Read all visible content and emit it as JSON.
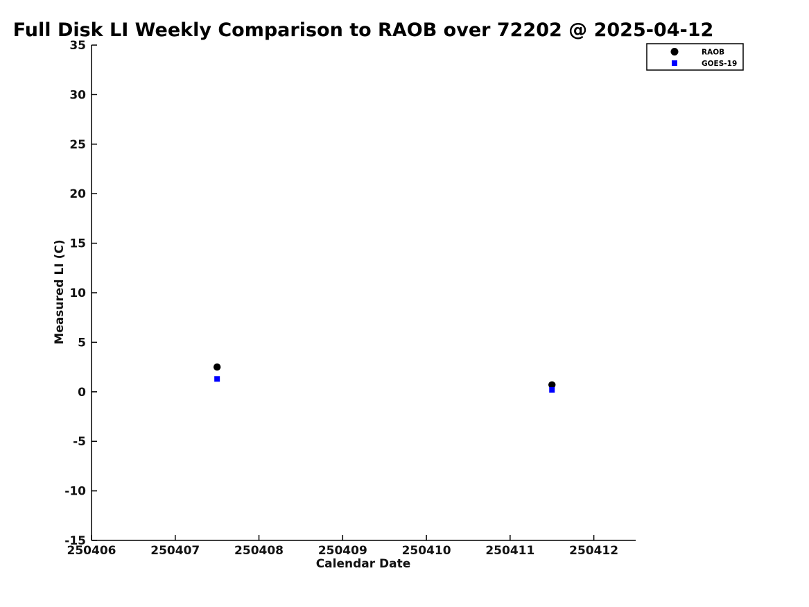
{
  "chart_data": {
    "type": "scatter",
    "title": "Full Disk LI Weekly Comparison to RAOB over 72202 @ 2025-04-12",
    "xlabel": "Calendar Date",
    "ylabel": "Measured LI (C)",
    "xlim": [
      250406,
      250412.5
    ],
    "ylim": [
      -15,
      35
    ],
    "x_ticks": [
      250406,
      250407,
      250408,
      250409,
      250410,
      250411,
      250412
    ],
    "y_ticks": [
      -15,
      -10,
      -5,
      0,
      5,
      10,
      15,
      20,
      25,
      30,
      35
    ],
    "grid": false,
    "legend_position": "top-right",
    "axis_color": "#000000",
    "background_color": "#ffffff",
    "series": [
      {
        "name": "RAOB",
        "marker": "circle",
        "color": "#000000",
        "points": [
          {
            "x": 250407.5,
            "y": 2.5
          },
          {
            "x": 250411.5,
            "y": 0.7
          }
        ]
      },
      {
        "name": "GOES-19",
        "marker": "square",
        "color": "#0000ff",
        "points": [
          {
            "x": 250407.5,
            "y": 1.3
          },
          {
            "x": 250411.5,
            "y": 0.2
          }
        ]
      }
    ]
  }
}
